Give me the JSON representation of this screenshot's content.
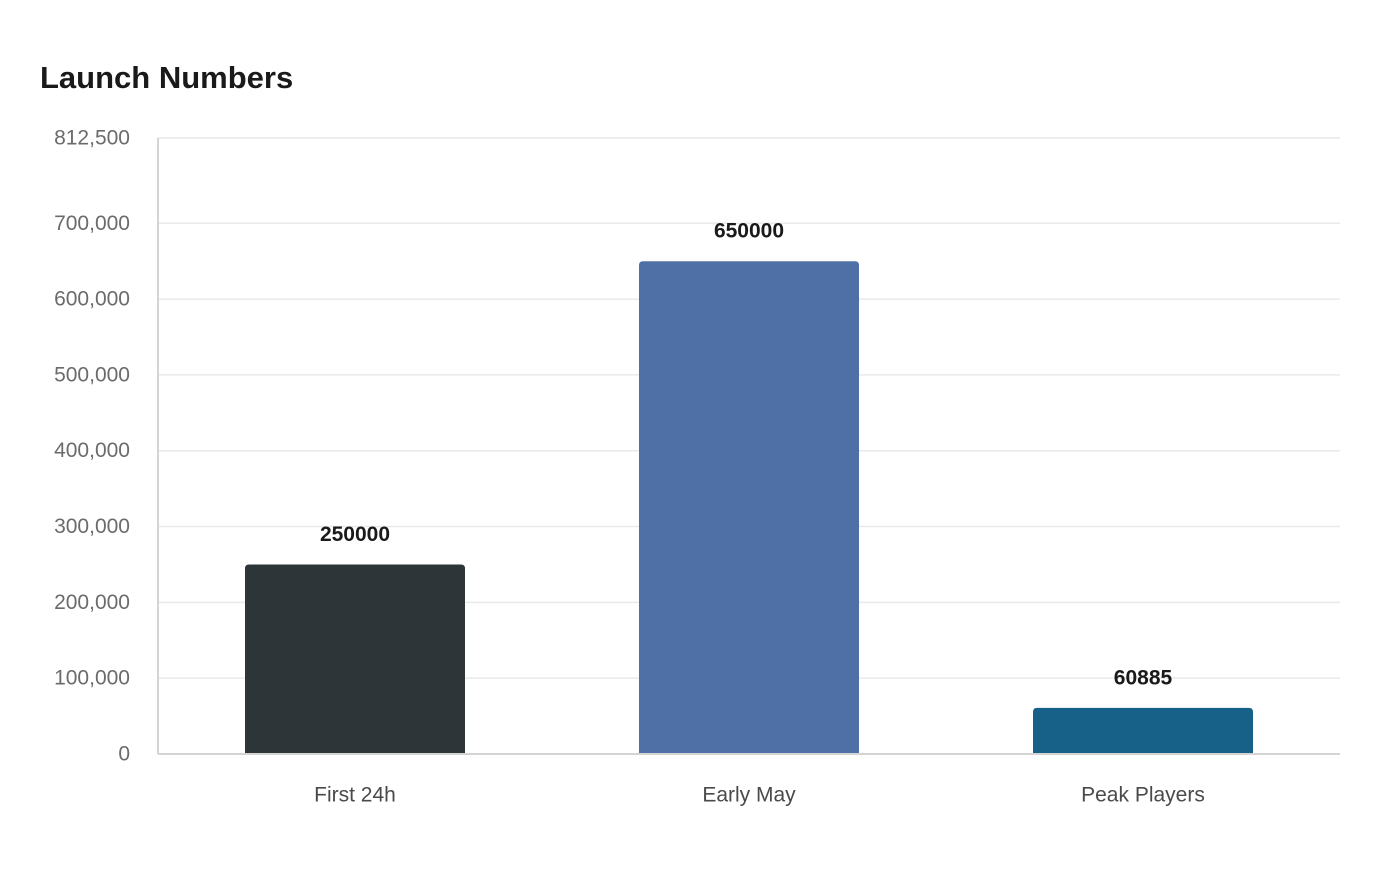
{
  "chart_data": {
    "type": "bar",
    "title": "Launch Numbers",
    "categories": [
      "First 24h",
      "Early May",
      "Peak Players"
    ],
    "values": [
      250000,
      650000,
      60885
    ],
    "value_labels": [
      "250000",
      "650000",
      "60885"
    ],
    "colors": [
      "#2e3538",
      "#4e70a6",
      "#176189"
    ],
    "ylim": [
      0,
      812500
    ],
    "yticks": [
      0,
      100000,
      200000,
      300000,
      400000,
      500000,
      600000,
      700000,
      812500
    ],
    "ytick_labels": [
      "0",
      "100,000",
      "200,000",
      "300,000",
      "400,000",
      "500,000",
      "600,000",
      "700,000",
      "812,500"
    ],
    "xlabel": "",
    "ylabel": "",
    "grid": true,
    "legend": "none"
  }
}
